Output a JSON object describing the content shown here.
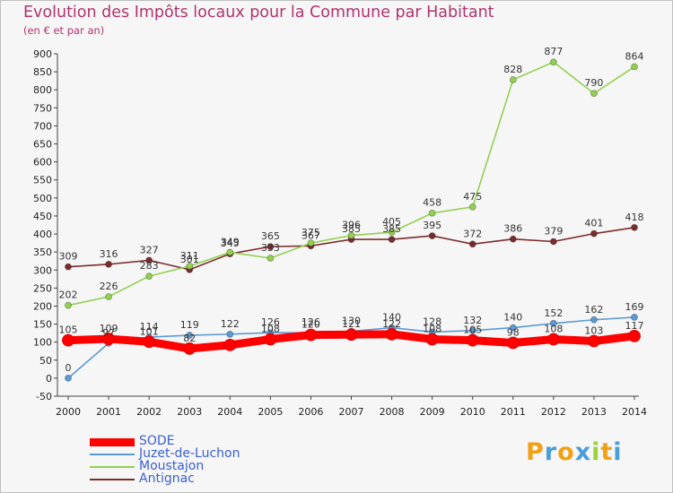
{
  "header": {
    "title": "Evolution des Impôts locaux pour la Commune par Habitant",
    "subtitle": "(en € et par an)"
  },
  "brand": {
    "letters": [
      "P",
      "r",
      "o",
      "x",
      "i",
      "t",
      "i"
    ],
    "colors": [
      "#f2a116",
      "#4a9fd8",
      "#f2a116",
      "#4a9fd8",
      "#9bd13c",
      "#f2a116",
      "#4a9fd8"
    ]
  },
  "chart_data": {
    "type": "line",
    "x": [
      "2000",
      "2001",
      "2002",
      "2003",
      "2004",
      "2005",
      "2006",
      "2007",
      "2008",
      "2009",
      "2010",
      "2011",
      "2012",
      "2013",
      "2014"
    ],
    "ylim": [
      -50,
      900
    ],
    "yticks": [
      -50,
      0,
      50,
      100,
      150,
      200,
      250,
      300,
      350,
      400,
      450,
      500,
      550,
      600,
      650,
      700,
      750,
      800,
      850,
      900
    ],
    "grid": false,
    "legend_position": "bottom-left",
    "series": [
      {
        "name": "SODE",
        "color": "#ff0000",
        "values": [
          105,
          109,
          101,
          82,
          92,
          108,
          120,
          121,
          122,
          108,
          105,
          98,
          108,
          103,
          117
        ],
        "labels": [
          "105",
          "109",
          "101",
          "82",
          "",
          "108",
          "120",
          "121",
          "122",
          "108",
          "105",
          "98",
          "108",
          "103",
          "117"
        ]
      },
      {
        "name": "Juzet-de-Luchon",
        "color": "#5b9bd5",
        "values": [
          0,
          97,
          114,
          119,
          122,
          126,
          126,
          130,
          140,
          128,
          132,
          140,
          152,
          162,
          169
        ],
        "labels": [
          "0",
          "97",
          "114",
          "119",
          "122",
          "126",
          "126",
          "130",
          "140",
          "128",
          "132",
          "140",
          "152",
          "162",
          "169"
        ]
      },
      {
        "name": "Moustajon",
        "color": "#92d050",
        "values": [
          202,
          226,
          283,
          311,
          349,
          333,
          375,
          396,
          405,
          458,
          475,
          828,
          877,
          790,
          864
        ],
        "labels": [
          "202",
          "226",
          "283",
          "311",
          "349",
          "333",
          "375",
          "396",
          "405",
          "458",
          "475",
          "828",
          "877",
          "790",
          "864"
        ]
      },
      {
        "name": "Antignac",
        "color": "#7b2c2c",
        "values": [
          309,
          316,
          327,
          301,
          345,
          365,
          367,
          385,
          385,
          395,
          372,
          386,
          379,
          401,
          418
        ],
        "labels": [
          "309",
          "316",
          "327",
          "301",
          "345",
          "365",
          "367",
          "385",
          "385",
          "395",
          "372",
          "386",
          "379",
          "401",
          "418"
        ]
      }
    ]
  }
}
